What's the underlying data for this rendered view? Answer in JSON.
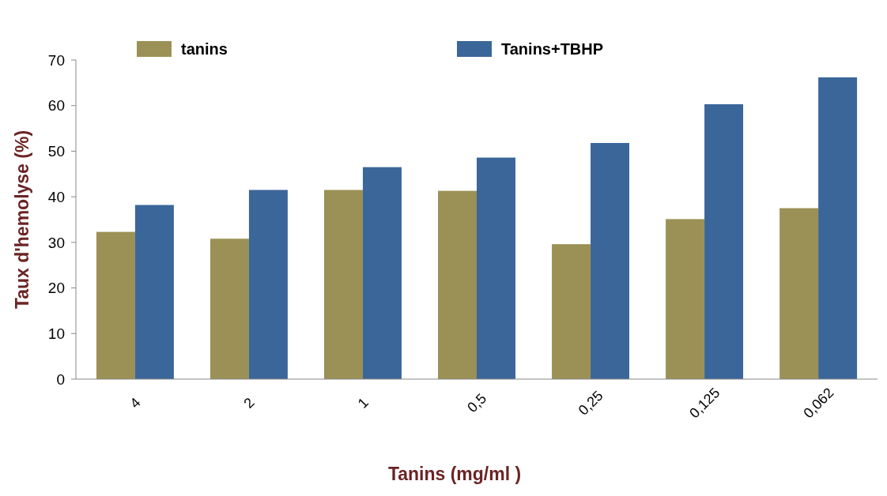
{
  "chart_data": {
    "type": "bar",
    "xlabel": "Tanins (mg/ml )",
    "ylabel": "Taux d'hemolyse (%)",
    "categories": [
      "4",
      "2",
      "1",
      "0,5",
      "0,25",
      "0,125",
      "0,062"
    ],
    "series": [
      {
        "name": "tanins",
        "color": "#9b9156",
        "values": [
          32.3,
          30.8,
          41.5,
          41.3,
          29.6,
          35.1,
          37.5
        ]
      },
      {
        "name": "Tanins+TBHP",
        "color": "#3b6699",
        "values": [
          38.2,
          41.5,
          46.5,
          48.6,
          51.8,
          60.3,
          66.2
        ]
      }
    ],
    "ylim": [
      0,
      70
    ],
    "yticks": [
      0,
      10,
      20,
      30,
      40,
      50,
      60,
      70
    ],
    "legend": "top"
  }
}
